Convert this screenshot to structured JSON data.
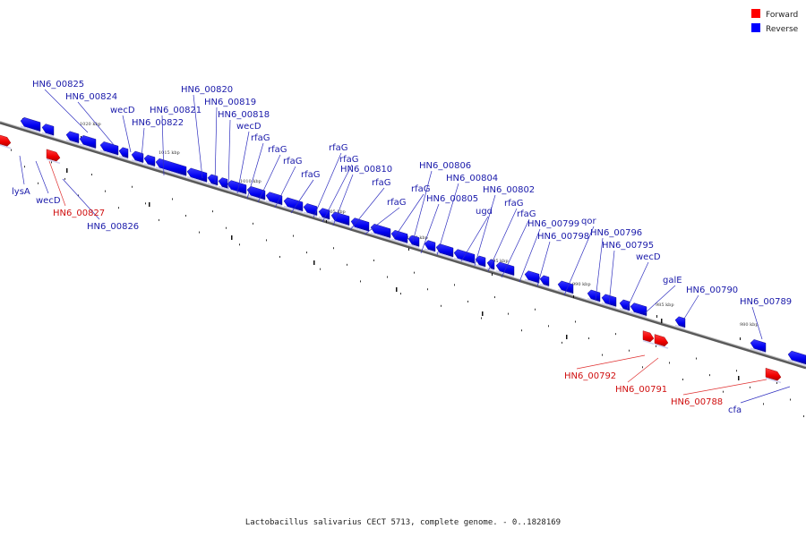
{
  "legend": [
    {
      "label": "Forward",
      "color": "#ff0000"
    },
    {
      "label": "Reverse",
      "color": "#0000ff"
    }
  ],
  "caption": "Lactobacillus salivarius CECT 5713, complete genome. - 0..1828169",
  "scale_ticks": [
    "1020 kbp",
    "1015 kbp",
    "1010 kbp",
    "1005 kbp",
    "1000 kbp",
    "995 kbp",
    "990 kbp",
    "985 kbp",
    "980 kbp"
  ],
  "genes": [
    {
      "label": "HN6_00825",
      "strand": "reverse"
    },
    {
      "label": "HN6_00824",
      "strand": "reverse"
    },
    {
      "label": "wecD",
      "strand": "reverse"
    },
    {
      "label": "HN6_00822",
      "strand": "reverse"
    },
    {
      "label": "HN6_00821",
      "strand": "reverse"
    },
    {
      "label": "HN6_00820",
      "strand": "reverse"
    },
    {
      "label": "HN6_00819",
      "strand": "reverse"
    },
    {
      "label": "HN6_00818",
      "strand": "reverse"
    },
    {
      "label": "wecD",
      "strand": "reverse"
    },
    {
      "label": "rfaG",
      "strand": "reverse"
    },
    {
      "label": "rfaG",
      "strand": "reverse"
    },
    {
      "label": "rfaG",
      "strand": "reverse"
    },
    {
      "label": "rfaG",
      "strand": "reverse"
    },
    {
      "label": "rfaG",
      "strand": "reverse"
    },
    {
      "label": "rfaG",
      "strand": "reverse"
    },
    {
      "label": "HN6_00810",
      "strand": "reverse"
    },
    {
      "label": "rfaG",
      "strand": "reverse"
    },
    {
      "label": "rfaG",
      "strand": "reverse"
    },
    {
      "label": "rfaG",
      "strand": "reverse"
    },
    {
      "label": "HN6_00806",
      "strand": "reverse"
    },
    {
      "label": "HN6_00805",
      "strand": "reverse"
    },
    {
      "label": "HN6_00804",
      "strand": "reverse"
    },
    {
      "label": "ugd",
      "strand": "reverse"
    },
    {
      "label": "HN6_00802",
      "strand": "reverse"
    },
    {
      "label": "rfaG",
      "strand": "reverse"
    },
    {
      "label": "rfaG",
      "strand": "reverse"
    },
    {
      "label": "HN6_00799",
      "strand": "reverse"
    },
    {
      "label": "HN6_00798",
      "strand": "reverse"
    },
    {
      "label": "qor",
      "strand": "reverse"
    },
    {
      "label": "HN6_00796",
      "strand": "reverse"
    },
    {
      "label": "HN6_00795",
      "strand": "reverse"
    },
    {
      "label": "wecD",
      "strand": "reverse"
    },
    {
      "label": "galE",
      "strand": "reverse"
    },
    {
      "label": "HN6_00790",
      "strand": "reverse"
    },
    {
      "label": "HN6_00789",
      "strand": "reverse"
    },
    {
      "label": "cfa",
      "strand": "reverse"
    },
    {
      "label": "lysA",
      "strand": "reverse"
    },
    {
      "label": "wecD",
      "strand": "reverse"
    },
    {
      "label": "HN6_00826",
      "strand": "reverse"
    },
    {
      "label": "HN6_00827",
      "strand": "forward"
    },
    {
      "label": "HN6_00792",
      "strand": "forward"
    },
    {
      "label": "HN6_00791",
      "strand": "forward"
    },
    {
      "label": "HN6_00788",
      "strand": "forward"
    }
  ]
}
